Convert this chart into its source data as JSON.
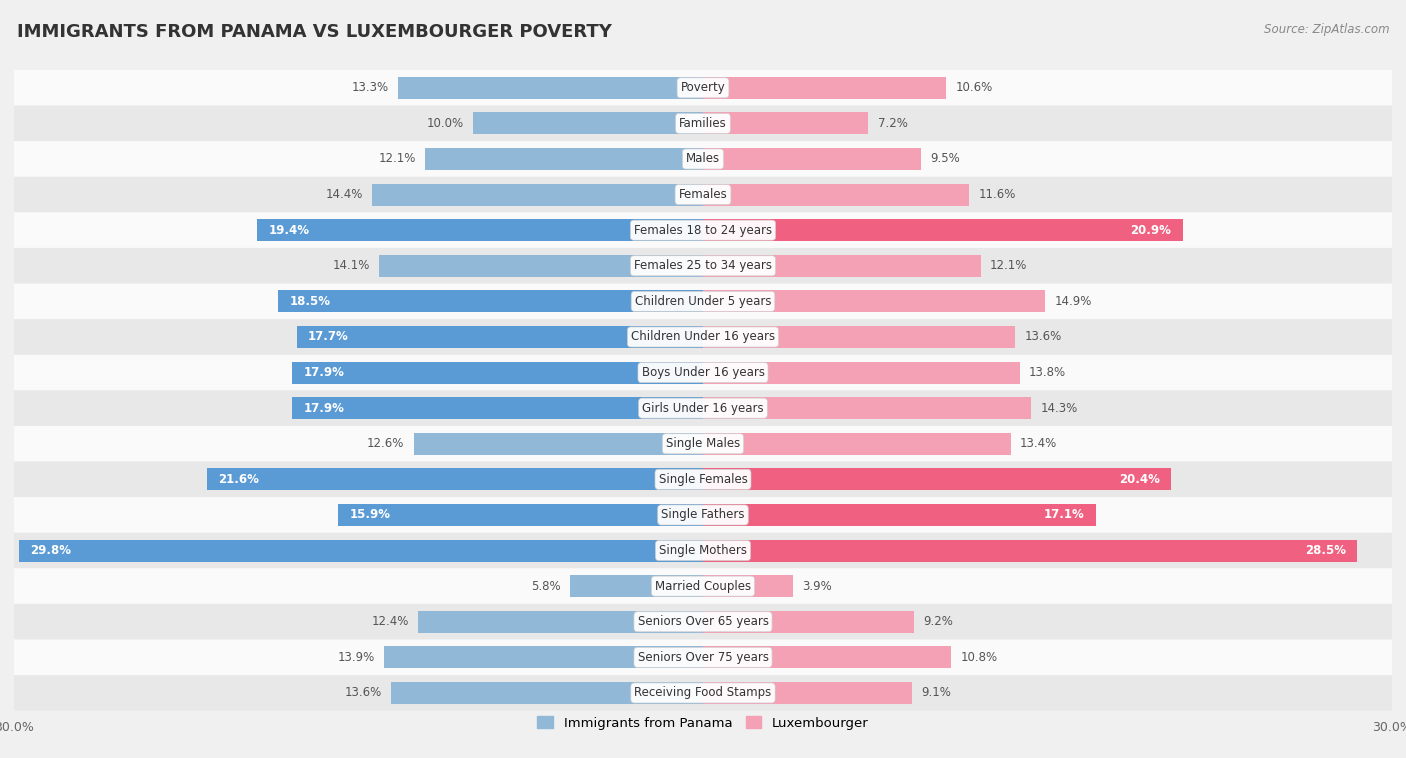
{
  "title": "IMMIGRANTS FROM PANAMA VS LUXEMBOURGER POVERTY",
  "source": "Source: ZipAtlas.com",
  "categories": [
    "Poverty",
    "Families",
    "Males",
    "Females",
    "Females 18 to 24 years",
    "Females 25 to 34 years",
    "Children Under 5 years",
    "Children Under 16 years",
    "Boys Under 16 years",
    "Girls Under 16 years",
    "Single Males",
    "Single Females",
    "Single Fathers",
    "Single Mothers",
    "Married Couples",
    "Seniors Over 65 years",
    "Seniors Over 75 years",
    "Receiving Food Stamps"
  ],
  "panama_values": [
    13.3,
    10.0,
    12.1,
    14.4,
    19.4,
    14.1,
    18.5,
    17.7,
    17.9,
    17.9,
    12.6,
    21.6,
    15.9,
    29.8,
    5.8,
    12.4,
    13.9,
    13.6
  ],
  "luxembourger_values": [
    10.6,
    7.2,
    9.5,
    11.6,
    20.9,
    12.1,
    14.9,
    13.6,
    13.8,
    14.3,
    13.4,
    20.4,
    17.1,
    28.5,
    3.9,
    9.2,
    10.8,
    9.1
  ],
  "panama_color": "#92b8d8",
  "luxembourger_color": "#f4a0b5",
  "panama_highlight_color": "#5b9bd5",
  "luxembourger_highlight_color": "#f06080",
  "background_color": "#f0f0f0",
  "row_color_light": "#fafafa",
  "row_color_dark": "#e8e8e8",
  "max_value": 30.0,
  "legend_panama": "Immigrants from Panama",
  "legend_luxembourger": "Luxembourger",
  "bar_height": 0.62,
  "highlight_thresh": 15.0
}
